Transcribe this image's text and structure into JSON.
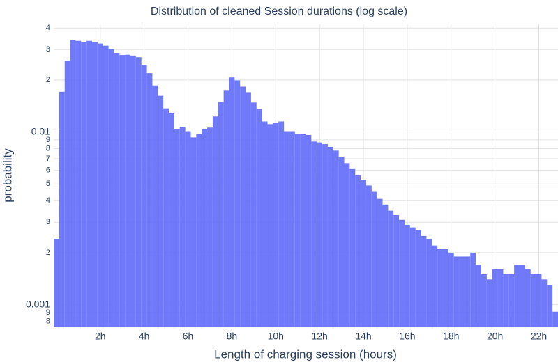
{
  "chart_data": {
    "type": "histogram",
    "title": "Distribution of cleaned Session durations (log scale)",
    "x_label": "Length of charging session (hours)",
    "y_label": "probability",
    "color": "#636efa",
    "log_y": true,
    "grid": true,
    "bins": [
      -0.125,
      0.125,
      0.375,
      0.625,
      0.875,
      1.125,
      1.375,
      1.625,
      1.875,
      2.125,
      2.375,
      2.625,
      2.875,
      3.125,
      3.375,
      3.625,
      3.875,
      4.125,
      4.375,
      4.625,
      4.875,
      5.125,
      5.375,
      5.625,
      5.875,
      6.125,
      6.375,
      6.625,
      6.875,
      7.125,
      7.375,
      7.625,
      7.875,
      8.125,
      8.375,
      8.625,
      8.875,
      9.125,
      9.375,
      9.625,
      9.875,
      10.125,
      10.375,
      10.625,
      10.875,
      11.125,
      11.375,
      11.625,
      11.875,
      12.125,
      12.375,
      12.625,
      12.875,
      13.125,
      13.375,
      13.625,
      13.875,
      14.125,
      14.375,
      14.625,
      14.875,
      15.125,
      15.375,
      15.625,
      15.875,
      16.125,
      16.375,
      16.625,
      16.875,
      17.125,
      17.375,
      17.625,
      17.875,
      18.125,
      18.375,
      18.625,
      18.875,
      19.125,
      19.375,
      19.625,
      19.875,
      20.125,
      20.375,
      20.625,
      20.875,
      21.125,
      21.375,
      21.625,
      21.875,
      22.125,
      22.375,
      22.625,
      22.875
    ],
    "values": [
      0.0024,
      0.0171,
      0.0258,
      0.0341,
      0.0337,
      0.0332,
      0.0337,
      0.0332,
      0.0325,
      0.0316,
      0.0303,
      0.0287,
      0.0279,
      0.028,
      0.0277,
      0.0271,
      0.0245,
      0.0219,
      0.0186,
      0.0162,
      0.0137,
      0.0128,
      0.0104,
      0.0107,
      0.0101,
      0.0093,
      0.0097,
      0.0104,
      0.0106,
      0.0123,
      0.0149,
      0.0175,
      0.0207,
      0.0199,
      0.0183,
      0.017,
      0.0148,
      0.0136,
      0.0115,
      0.0111,
      0.0113,
      0.0115,
      0.0101,
      0.0101,
      0.0097,
      0.0097,
      0.0096,
      0.0088,
      0.0087,
      0.0085,
      0.0082,
      0.0078,
      0.0072,
      0.0066,
      0.0061,
      0.0056,
      0.0053,
      0.0049,
      0.0045,
      0.0041,
      0.0038,
      0.0035,
      0.0033,
      0.0031,
      0.0029,
      0.0028,
      0.0027,
      0.0025,
      0.0024,
      0.0022,
      0.0021,
      0.0021,
      0.002,
      0.0019,
      0.0019,
      0.0019,
      0.002,
      0.0017,
      0.0015,
      0.0014,
      0.0016,
      0.0016,
      0.0015,
      0.0015,
      0.0017,
      0.0017,
      0.0016,
      0.0015,
      0.0015,
      0.0014,
      0.0013,
      0.00091
    ],
    "xlim": [
      -0.125,
      22.875
    ],
    "ylim": [
      0.00074,
      0.042
    ],
    "xticks": [
      {
        "value": 2,
        "label": "2h"
      },
      {
        "value": 4,
        "label": "4h"
      },
      {
        "value": 6,
        "label": "6h"
      },
      {
        "value": 8,
        "label": "8h"
      },
      {
        "value": 10,
        "label": "10h"
      },
      {
        "value": 12,
        "label": "12h"
      },
      {
        "value": 14,
        "label": "14h"
      },
      {
        "value": 16,
        "label": "16h"
      },
      {
        "value": 18,
        "label": "18h"
      },
      {
        "value": 20,
        "label": "20h"
      },
      {
        "value": 22,
        "label": "22h"
      }
    ],
    "yticks": [
      {
        "value": 0.0008,
        "label": "8"
      },
      {
        "value": 0.0009,
        "label": "9"
      },
      0.001,
      {
        "value": 0.002,
        "label": "2"
      },
      {
        "value": 0.003,
        "label": "3"
      },
      {
        "value": 0.004,
        "label": "4"
      },
      {
        "value": 0.005,
        "label": "5"
      },
      {
        "value": 0.006,
        "label": "6"
      },
      {
        "value": 0.007,
        "label": "7"
      },
      {
        "value": 0.008,
        "label": "8"
      },
      {
        "value": 0.009,
        "label": "9"
      },
      0.01,
      {
        "value": 0.02,
        "label": "2"
      },
      {
        "value": 0.03,
        "label": "3"
      },
      {
        "value": 0.04,
        "label": "4"
      }
    ]
  }
}
